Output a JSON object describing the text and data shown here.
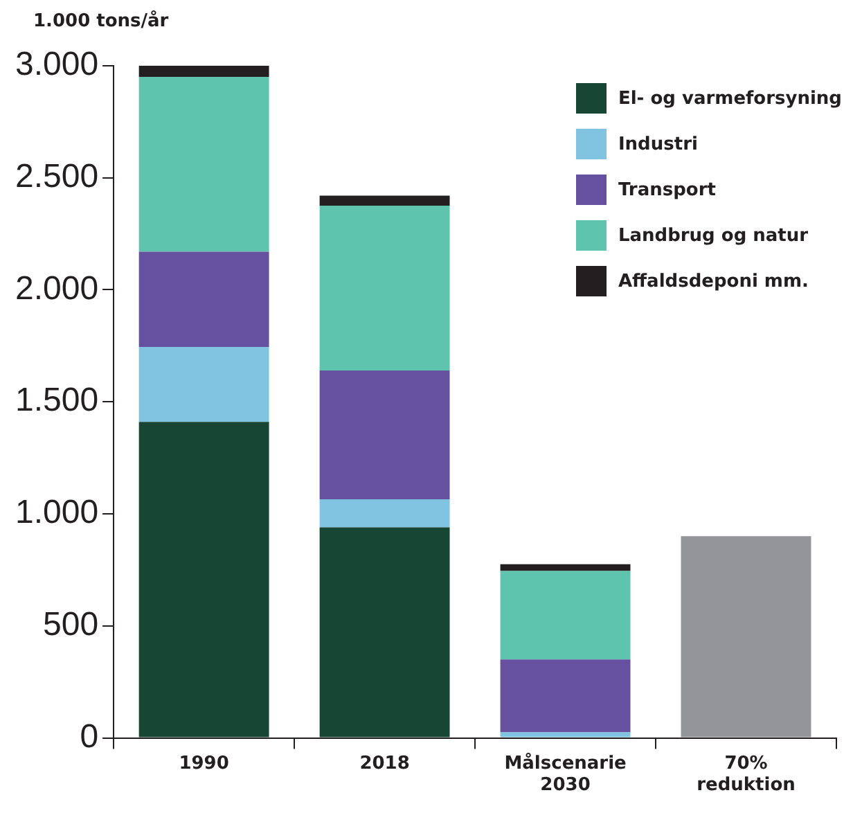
{
  "chart_data": {
    "type": "bar",
    "stacked": true,
    "ylabel": "1.000 tons/år",
    "categories": [
      "1990",
      "2018",
      "Målscenarie 2030",
      "70% reduktion"
    ],
    "series": [
      {
        "name": "El- og varmeforsyning",
        "color": "#174634",
        "values": [
          1410,
          940,
          null,
          null
        ]
      },
      {
        "name": "Industri",
        "color": "#80c4e1",
        "values": [
          335,
          125,
          25,
          null
        ]
      },
      {
        "name": "Transport",
        "color": "#6650a0",
        "values": [
          425,
          575,
          325,
          null
        ]
      },
      {
        "name": "Landbrug og natur",
        "color": "#5ec4ad",
        "values": [
          780,
          735,
          395,
          null
        ]
      },
      {
        "name": "Affaldsdeponi mm.",
        "color": "#231f20",
        "values": [
          50,
          45,
          30,
          null
        ]
      },
      {
        "color": "#939598",
        "values": [
          null,
          null,
          null,
          900
        ]
      }
    ],
    "ylim": [
      0,
      3000
    ],
    "yticks": [
      {
        "value": 0,
        "label": "0"
      },
      {
        "value": 500,
        "label": "500"
      },
      {
        "value": 1000,
        "label": "1.000"
      },
      {
        "value": 1500,
        "label": "1.500"
      },
      {
        "value": 2000,
        "label": "2.000"
      },
      {
        "value": 2500,
        "label": "2.500"
      },
      {
        "value": 3000,
        "label": "3.000"
      }
    ],
    "grid": false,
    "legend": "top right"
  }
}
